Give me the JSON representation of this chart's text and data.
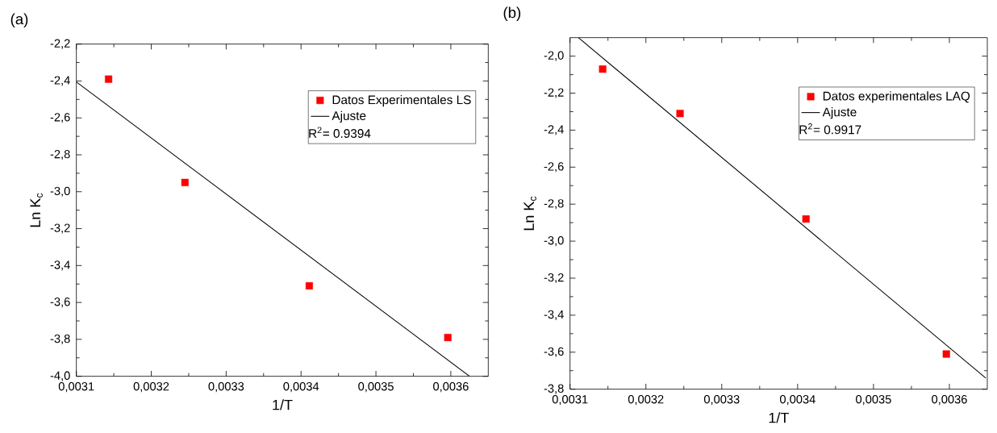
{
  "chart_data": [
    {
      "type": "scatter",
      "title": "(a)",
      "xlabel": "1/T",
      "ylabel": "Ln K$_{c}$",
      "legend": "top right",
      "annotations": [
        "R$^{2}$= 0.9394"
      ],
      "xlim": [
        0.0031,
        0.00365
      ],
      "ylim": [
        -4.0,
        -2.2
      ],
      "xticks": [
        {
          "value": 0.0031,
          "label": "0,0031"
        },
        {
          "value": 0.0032,
          "label": "0,0032"
        },
        {
          "value": 0.0033,
          "label": "0,0033"
        },
        {
          "value": 0.0034,
          "label": "0,0034"
        },
        {
          "value": 0.0035,
          "label": "0,0035"
        },
        {
          "value": 0.0036,
          "label": "0,0036"
        }
      ],
      "yticks": [
        {
          "value": -4.0,
          "label": "-4,0"
        },
        {
          "value": -3.8,
          "label": "-3,8"
        },
        {
          "value": -3.6,
          "label": "-3,6"
        },
        {
          "value": -3.4,
          "label": "-3,4"
        },
        {
          "value": -3.2,
          "label": "-3,2"
        },
        {
          "value": -3.0,
          "label": "-3,0"
        },
        {
          "value": -2.8,
          "label": "-2,8"
        },
        {
          "value": -2.6,
          "label": "-2,6"
        },
        {
          "value": -2.4,
          "label": "-2,4"
        },
        {
          "value": -2.2,
          "label": "-2,2"
        }
      ],
      "series": [
        {
          "name": "Datos Experimentales LS",
          "marker": "square",
          "color": "#ff0000",
          "x": [
            0.003143,
            0.003245,
            0.003411,
            0.003596
          ],
          "values": [
            -2.39,
            -2.95,
            -3.51,
            -3.79
          ]
        },
        {
          "name": "Ajuste",
          "type": "line",
          "marker": "none",
          "color": "#000000",
          "x": [
            0.0031,
            0.003625
          ],
          "values": [
            -2.405,
            -4.0
          ]
        }
      ]
    },
    {
      "type": "scatter",
      "title": "(b)",
      "xlabel": "1/T",
      "ylabel": "Ln K$_{c}$",
      "legend": "top right",
      "annotations": [
        "R$^{2}$= 0.9917"
      ],
      "xlim": [
        0.0031,
        0.00365
      ],
      "ylim": [
        -3.8,
        -1.9
      ],
      "xticks": [
        {
          "value": 0.0031,
          "label": "0,0031"
        },
        {
          "value": 0.0032,
          "label": "0,0032"
        },
        {
          "value": 0.0033,
          "label": "0,0033"
        },
        {
          "value": 0.0034,
          "label": "0,0034"
        },
        {
          "value": 0.0035,
          "label": "0,0035"
        },
        {
          "value": 0.0036,
          "label": "0,0036"
        }
      ],
      "yticks": [
        {
          "value": -3.8,
          "label": "-3,8"
        },
        {
          "value": -3.6,
          "label": "-3,6"
        },
        {
          "value": -3.4,
          "label": "-3,4"
        },
        {
          "value": -3.2,
          "label": "-3,2"
        },
        {
          "value": -3.0,
          "label": "-3,0"
        },
        {
          "value": -2.8,
          "label": "-2,8"
        },
        {
          "value": -2.6,
          "label": "-2,6"
        },
        {
          "value": -2.4,
          "label": "-2,4"
        },
        {
          "value": -2.2,
          "label": "-2,2"
        },
        {
          "value": -2.0,
          "label": "-2,0"
        }
      ],
      "series": [
        {
          "name": "Datos experimentales LAQ",
          "marker": "square",
          "color": "#ff0000",
          "x": [
            0.003143,
            0.003245,
            0.003411,
            0.003596
          ],
          "values": [
            -2.07,
            -2.31,
            -2.88,
            -3.61
          ]
        },
        {
          "name": "Ajuste",
          "type": "line",
          "marker": "none",
          "color": "#000000",
          "x": [
            0.003111,
            0.003648
          ],
          "values": [
            -1.9,
            -3.74
          ]
        }
      ]
    }
  ]
}
